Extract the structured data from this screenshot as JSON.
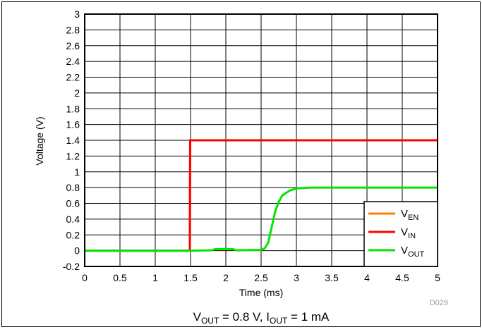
{
  "chart_data": {
    "type": "line",
    "xlabel": "Time (ms)",
    "ylabel": "Voltage (V)",
    "xlim": [
      0,
      5
    ],
    "ylim": [
      -0.2,
      3
    ],
    "x_ticks": [
      "0",
      "0.5",
      "1",
      "1.5",
      "2",
      "2.5",
      "3",
      "3.5",
      "4",
      "4.5",
      "5"
    ],
    "y_ticks": [
      "-0.2",
      "0",
      "0.2",
      "0.4",
      "0.6",
      "0.8",
      "1",
      "1.2",
      "1.4",
      "1.6",
      "1.8",
      "2",
      "2.2",
      "2.4",
      "2.6",
      "2.8",
      "3"
    ],
    "grid": true,
    "legend_position": "bottom-right",
    "figure_id": "D029",
    "caption": {
      "v": "V",
      "out_sub": "OUT",
      "mid": " = 0.8 V, I",
      "tail": " = 1 mA"
    },
    "series": [
      {
        "name": "V_EN",
        "legend_main": "V",
        "legend_sub": "EN",
        "color": "#ff7f00",
        "x": [
          0,
          1.49,
          1.495,
          5
        ],
        "y": [
          0,
          0,
          1.4,
          1.4
        ]
      },
      {
        "name": "V_IN",
        "legend_main": "V",
        "legend_sub": "IN",
        "color": "#ff0000",
        "x": [
          0,
          1.49,
          1.495,
          5
        ],
        "y": [
          0,
          0,
          1.4,
          1.4
        ]
      },
      {
        "name": "V_OUT",
        "legend_main": "V",
        "legend_sub": "OUT",
        "color": "#00e600",
        "x": [
          0,
          1.5,
          1.8,
          1.85,
          2.0,
          2.1,
          2.15,
          2.5,
          2.55,
          2.6,
          2.65,
          2.7,
          2.75,
          2.8,
          2.9,
          3.0,
          3.2,
          5
        ],
        "y": [
          0,
          0,
          0.005,
          0.02,
          0.02,
          0.02,
          0.005,
          0.01,
          0.03,
          0.1,
          0.3,
          0.5,
          0.62,
          0.7,
          0.76,
          0.79,
          0.8,
          0.8
        ]
      }
    ]
  }
}
